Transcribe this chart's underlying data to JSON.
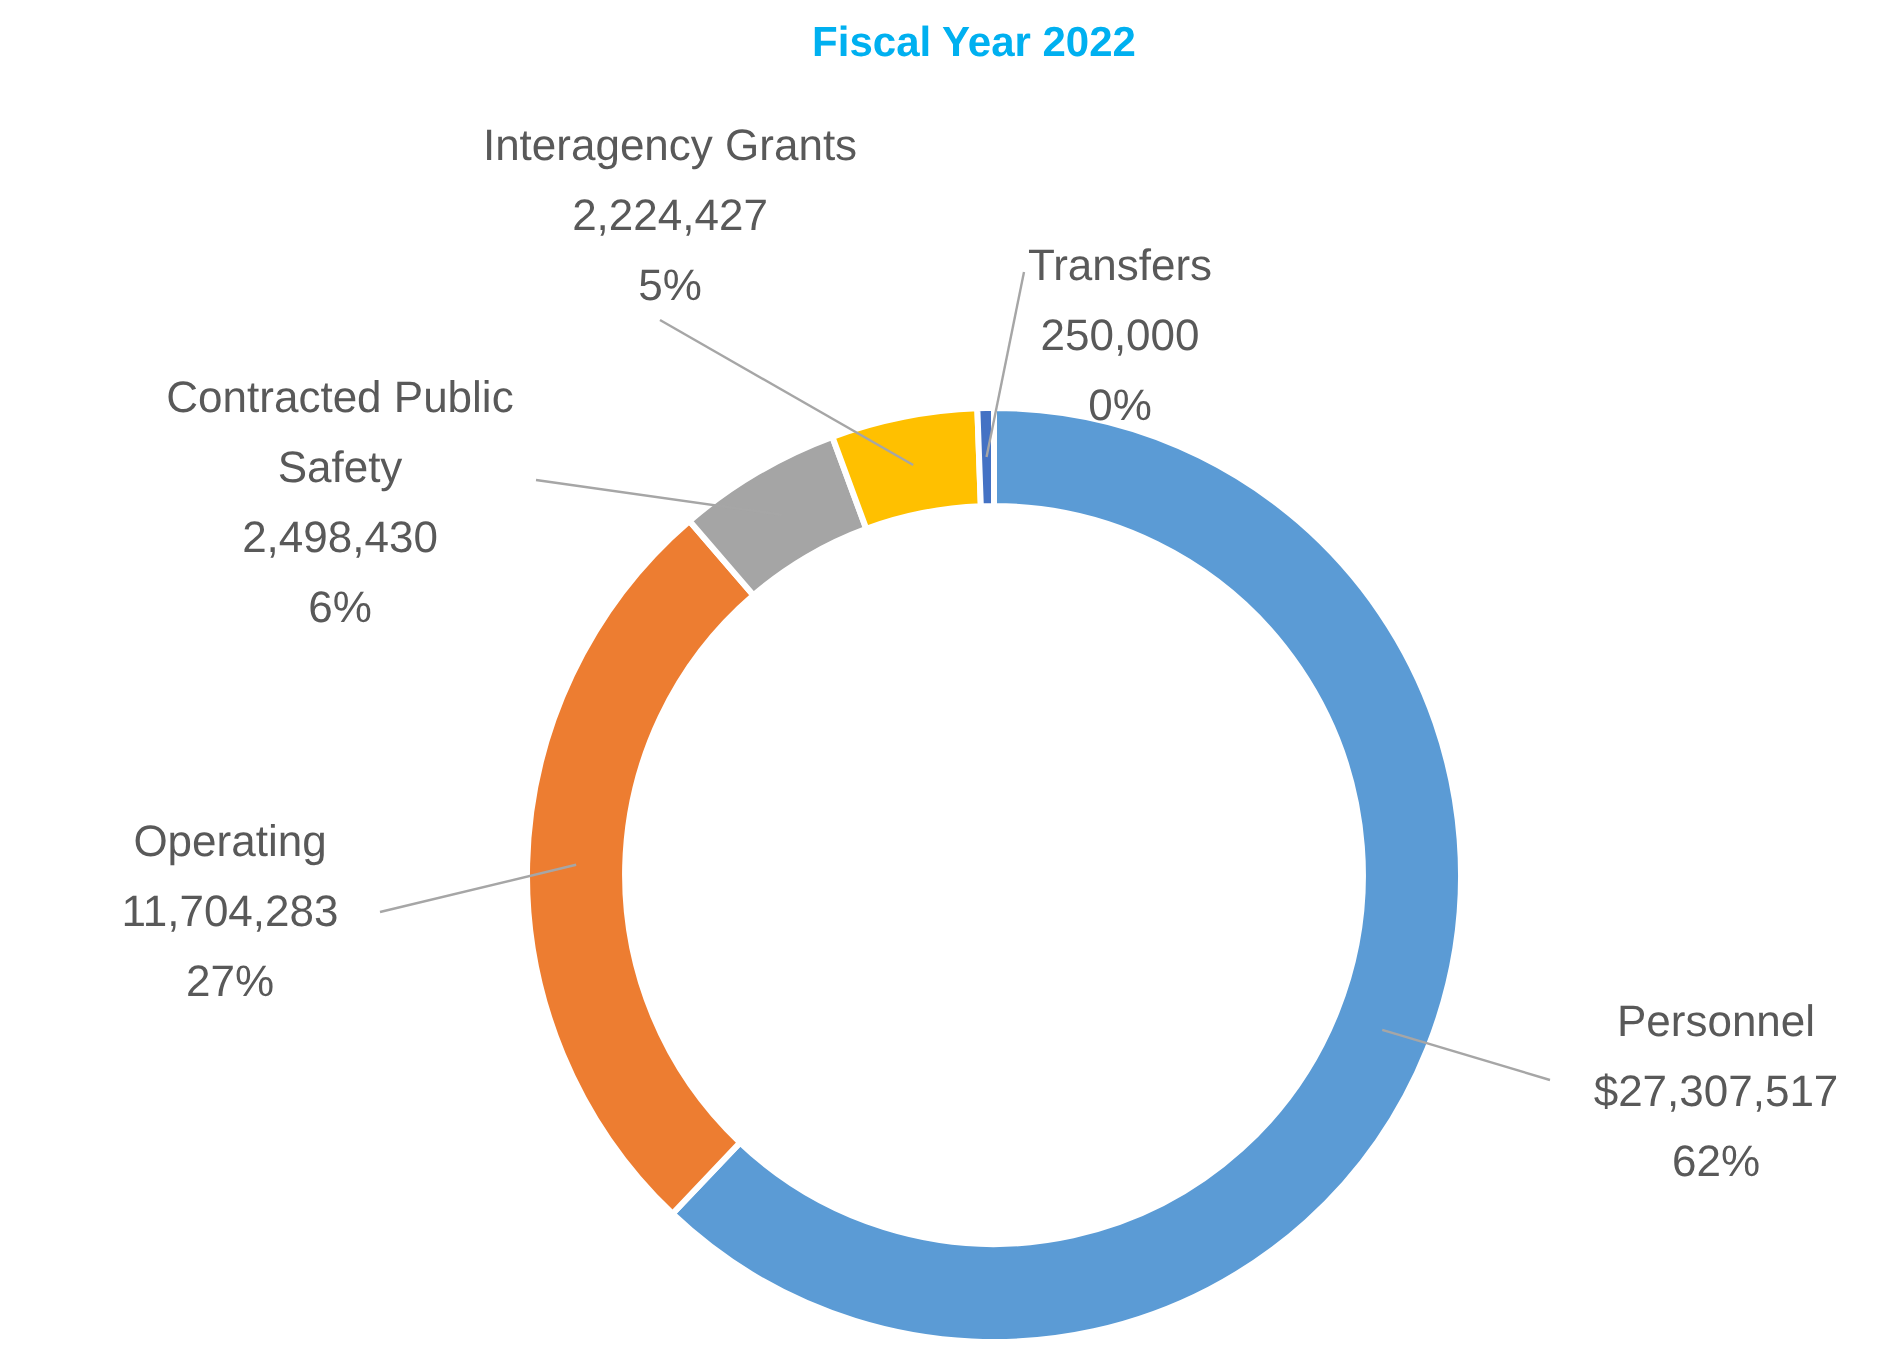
{
  "chart_data": {
    "type": "donut",
    "title": "Fiscal Year 2022",
    "categories": [
      "Personnel",
      "Operating",
      "Contracted Public Safety",
      "Interagency Grants",
      "Transfers"
    ],
    "values": [
      27307517,
      11704283,
      2498430,
      2224427,
      250000
    ],
    "value_labels": [
      "$27,307,517\n62%",
      "11,704,283\n27%",
      "2,498,430\n6%",
      "2,224,427\n5%",
      "250,000\n0%"
    ],
    "colors": [
      "#5b9bd5",
      "#ed7d31",
      "#a5a5a5",
      "#ffc000",
      "#4472c4"
    ],
    "legend": false
  }
}
